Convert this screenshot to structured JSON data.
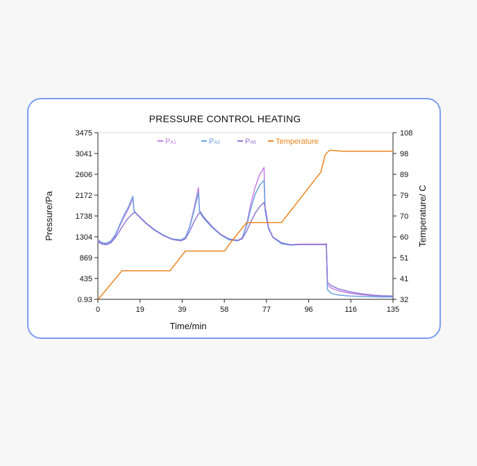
{
  "chart_data": {
    "type": "line",
    "title": "PRESSURE CONTROL HEATING",
    "xlabel": "Time/min",
    "ylabel": "Pressure/Pa",
    "y2label": "Temperature/ C",
    "xlim": [
      0,
      135
    ],
    "ylim": [
      0.93,
      3475
    ],
    "y2lim": [
      32,
      108
    ],
    "x_ticks": [
      "0",
      "19",
      "39",
      "58",
      "77",
      "96",
      "116",
      "135"
    ],
    "y_ticks": [
      "0.93",
      "435",
      "869",
      "1304",
      "1738",
      "2172",
      "2606",
      "3041",
      "3475"
    ],
    "y2_ticks": [
      "32",
      "41",
      "51",
      "60",
      "70",
      "79",
      "89",
      "98",
      "108"
    ],
    "legend_position": "top",
    "legend": [
      {
        "main": "P",
        "sub": "A1",
        "color": "#c77ee8"
      },
      {
        "main": "P",
        "sub": "A3",
        "color": "#6aa2e0"
      },
      {
        "main": "P",
        "sub": "A6",
        "color": "#8a77d6"
      },
      {
        "main": "Temperature",
        "sub": "",
        "color": "#e9851e"
      }
    ],
    "series": [
      {
        "color": "#c77ee8",
        "axis": "left",
        "x": [
          0,
          2,
          4,
          6,
          8,
          10,
          12,
          14,
          16,
          16.5,
          18,
          22,
          26,
          30,
          34,
          38,
          40,
          42,
          44,
          46,
          46.5,
          48,
          52,
          56,
          60,
          64,
          66,
          68,
          70,
          72,
          74,
          76,
          76.5,
          78,
          80,
          84,
          88,
          92,
          96,
          100,
          104,
          104.5,
          105,
          107,
          110,
          115,
          120,
          125,
          130,
          135
        ],
        "y": [
          1220,
          1160,
          1150,
          1200,
          1330,
          1530,
          1720,
          1890,
          2100,
          1840,
          1760,
          1580,
          1440,
          1330,
          1250,
          1230,
          1280,
          1520,
          1900,
          2330,
          1850,
          1720,
          1520,
          1360,
          1250,
          1230,
          1280,
          1560,
          2000,
          2350,
          2600,
          2750,
          1880,
          1500,
          1300,
          1170,
          1140,
          1150,
          1150,
          1150,
          1150,
          1160,
          300,
          230,
          180,
          130,
          100,
          80,
          65,
          60
        ]
      },
      {
        "color": "#6aa2e0",
        "axis": "left",
        "x": [
          0,
          2,
          4,
          6,
          8,
          10,
          12,
          14,
          16,
          16.5,
          18,
          22,
          26,
          30,
          34,
          38,
          40,
          42,
          44,
          46,
          46.5,
          48,
          52,
          56,
          60,
          64,
          66,
          68,
          70,
          72,
          74,
          76,
          76.5,
          78,
          80,
          84,
          88,
          92,
          96,
          100,
          104,
          104.5,
          105,
          107,
          110,
          115,
          120,
          125,
          130,
          135
        ],
        "y": [
          1240,
          1180,
          1170,
          1220,
          1350,
          1560,
          1760,
          1930,
          2150,
          1850,
          1770,
          1590,
          1450,
          1340,
          1260,
          1240,
          1290,
          1500,
          1850,
          2220,
          1830,
          1710,
          1510,
          1350,
          1240,
          1220,
          1270,
          1530,
          1900,
          2200,
          2380,
          2480,
          1850,
          1480,
          1290,
          1160,
          1130,
          1140,
          1140,
          1140,
          1140,
          1150,
          200,
          120,
          90,
          70,
          60,
          55,
          50,
          50
        ]
      },
      {
        "color": "#8a77d6",
        "axis": "left",
        "x": [
          0,
          2,
          4,
          6,
          8,
          10,
          12,
          14,
          16,
          17,
          18,
          22,
          26,
          30,
          34,
          38,
          40,
          42,
          44,
          46,
          47,
          48,
          52,
          56,
          60,
          64,
          66,
          68,
          70,
          72,
          74,
          76,
          77,
          78,
          80,
          84,
          88,
          92,
          96,
          100,
          104,
          104.5,
          105,
          107,
          110,
          115,
          120,
          125,
          130,
          135
        ],
        "y": [
          1200,
          1150,
          1140,
          1180,
          1290,
          1430,
          1580,
          1700,
          1790,
          1810,
          1770,
          1590,
          1440,
          1330,
          1250,
          1220,
          1260,
          1420,
          1620,
          1780,
          1820,
          1740,
          1530,
          1360,
          1260,
          1230,
          1260,
          1420,
          1620,
          1800,
          1930,
          2020,
          1800,
          1500,
          1300,
          1180,
          1140,
          1140,
          1140,
          1140,
          1140,
          1150,
          350,
          280,
          220,
          160,
          120,
          90,
          75,
          70
        ]
      },
      {
        "name": "Temperature",
        "color": "#e9851e",
        "axis": "right",
        "x": [
          0,
          1,
          11,
          33,
          40,
          58,
          60,
          68,
          84,
          102,
          104,
          106,
          112,
          135
        ],
        "y": [
          32,
          33,
          45,
          45,
          54,
          54,
          57,
          67,
          67,
          90,
          98,
          100,
          99.5,
          99.5
        ]
      }
    ]
  }
}
